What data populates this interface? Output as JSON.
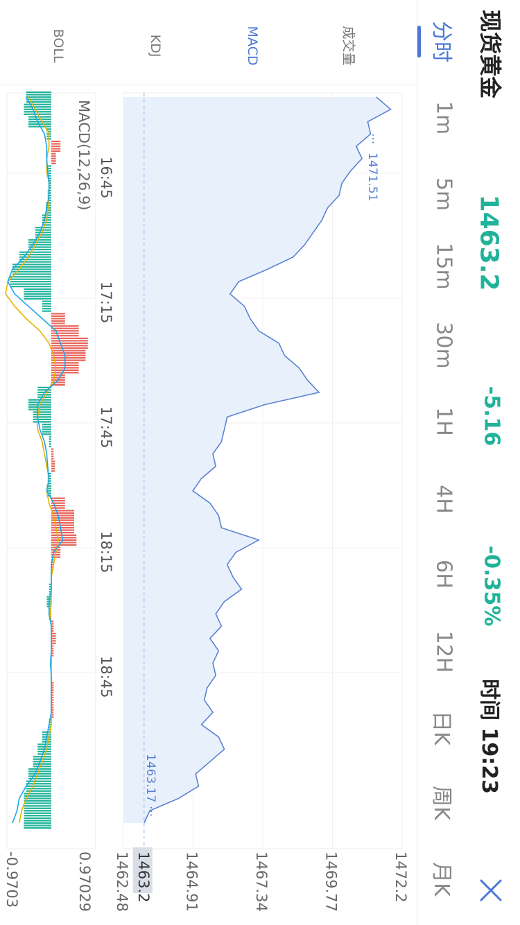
{
  "instrument": {
    "title": "现货黄金",
    "price": "1463.2",
    "change": "-5.16",
    "change_pct": "-0.35%",
    "time_label": "时间 19:23"
  },
  "periods": [
    "分时",
    "1m",
    "5m",
    "15m",
    "30m",
    "1H",
    "4H",
    "6H",
    "12H",
    "日K",
    "周K",
    "月K"
  ],
  "active_period": "分时",
  "indicator_tabs": [
    "成交量",
    "MACD",
    "KDJ",
    "BOLL"
  ],
  "active_indicator": "MACD",
  "price_axis": {
    "labels": [
      "1472.2",
      "1469.77",
      "1467.34",
      "1464.91",
      "1462.48"
    ],
    "current_label": "1463.2"
  },
  "time_axis": {
    "labels": [
      "16:45",
      "17:15",
      "17:45",
      "18:15",
      "18:45"
    ]
  },
  "macd_label": "MACD(12,26,9)",
  "macd_axis": {
    "max": "0.97029",
    "min": "-0.9703"
  },
  "annotations": {
    "high": "1471.51",
    "low": "1463.17"
  },
  "colors": {
    "accent": "#4a78d6",
    "down": "#21b39a",
    "up": "#e8645a",
    "price_line": "#5b82d4",
    "price_fill": "#e8f0fb",
    "dif": "#1aa7e8",
    "dea": "#e6b400"
  },
  "chart_data": {
    "type": "line",
    "price_series": {
      "x": [
        "16:27",
        "16:30",
        "16:33",
        "16:36",
        "16:39",
        "16:42",
        "16:45",
        "16:48",
        "16:51",
        "16:54",
        "16:57",
        "17:00",
        "17:03",
        "17:06",
        "17:09",
        "17:12",
        "17:15",
        "17:18",
        "17:21",
        "17:24",
        "17:27",
        "17:30",
        "17:33",
        "17:36",
        "17:39",
        "17:42",
        "17:45",
        "17:48",
        "17:51",
        "17:54",
        "17:57",
        "18:00",
        "18:03",
        "18:06",
        "18:09",
        "18:12",
        "18:15",
        "18:18",
        "18:21",
        "18:24",
        "18:27",
        "18:30",
        "18:33",
        "18:36",
        "18:39",
        "18:42",
        "18:45",
        "18:48",
        "18:51",
        "18:54",
        "18:57",
        "19:00",
        "19:03",
        "19:06",
        "19:09",
        "19:12",
        "19:15",
        "19:18",
        "19:21",
        "19:23"
      ],
      "y": [
        1471.3,
        1471.8,
        1471.0,
        1471.1,
        1470.6,
        1470.8,
        1470.4,
        1470.1,
        1470.0,
        1469.6,
        1469.4,
        1469.1,
        1468.8,
        1468.4,
        1467.5,
        1466.5,
        1466.2,
        1466.7,
        1466.9,
        1467.2,
        1467.9,
        1468.1,
        1468.6,
        1468.9,
        1469.3,
        1467.4,
        1466.1,
        1466.0,
        1465.9,
        1465.6,
        1465.7,
        1465.2,
        1464.9,
        1465.5,
        1465.8,
        1465.9,
        1467.2,
        1466.4,
        1466.1,
        1466.3,
        1466.6,
        1466.0,
        1465.7,
        1465.9,
        1465.5,
        1465.8,
        1465.6,
        1465.7,
        1465.4,
        1465.3,
        1465.6,
        1465.2,
        1465.8,
        1466.0,
        1465.5,
        1465.0,
        1465.1,
        1464.4,
        1463.4,
        1463.2
      ]
    },
    "macd_series": {
      "histogram": [
        -0.55,
        -0.6,
        -0.5,
        -0.1,
        0.2,
        0.1,
        -0.1,
        -0.05,
        -0.08,
        -0.12,
        -0.2,
        -0.35,
        -0.5,
        -0.7,
        -0.85,
        -0.9,
        -0.6,
        -0.2,
        0.3,
        0.6,
        0.8,
        0.75,
        0.6,
        0.3,
        -0.3,
        -0.5,
        -0.4,
        -0.2,
        -0.05,
        0.05,
        0.08,
        -0.08,
        -0.1,
        0.3,
        0.5,
        0.5,
        0.55,
        0.2,
        0.05,
        0.0,
        -0.05,
        -0.1,
        -0.05,
        0.05,
        0.1,
        0.05,
        0.0,
        0.0,
        0.05,
        0.05,
        0.05,
        -0.05,
        -0.2,
        -0.3,
        -0.4,
        -0.5,
        -0.55,
        -0.6,
        -0.6,
        -0.6
      ],
      "dif": [
        -0.55,
        -0.4,
        -0.3,
        -0.15,
        -0.1,
        -0.1,
        -0.08,
        -0.05,
        -0.05,
        -0.1,
        -0.15,
        -0.25,
        -0.4,
        -0.6,
        -0.85,
        -0.95,
        -0.8,
        -0.5,
        -0.2,
        0.1,
        0.2,
        0.3,
        0.3,
        0.15,
        -0.15,
        -0.3,
        -0.3,
        -0.25,
        -0.15,
        -0.1,
        -0.08,
        -0.05,
        -0.1,
        0.05,
        0.15,
        0.2,
        0.25,
        0.05,
        0.0,
        0.0,
        0.0,
        -0.05,
        -0.05,
        0.0,
        0.0,
        0.0,
        -0.02,
        0.0,
        0.0,
        0.0,
        0.0,
        -0.05,
        -0.1,
        -0.15,
        -0.25,
        -0.35,
        -0.55,
        -0.7,
        -0.75,
        -0.85
      ],
      "dea": [
        -0.5,
        -0.35,
        -0.2,
        -0.05,
        -0.05,
        -0.1,
        -0.1,
        -0.05,
        -0.05,
        -0.07,
        -0.1,
        -0.2,
        -0.35,
        -0.5,
        -0.7,
        -0.95,
        -1.0,
        -0.8,
        -0.55,
        -0.25,
        -0.05,
        0.05,
        0.1,
        0.05,
        -0.1,
        -0.25,
        -0.3,
        -0.3,
        -0.2,
        -0.15,
        -0.1,
        -0.05,
        -0.1,
        -0.05,
        0.05,
        0.1,
        0.15,
        0.1,
        0.05,
        0.0,
        0.0,
        0.0,
        -0.02,
        0.0,
        0.0,
        0.0,
        0.0,
        0.0,
        0.0,
        0.0,
        0.0,
        0.0,
        -0.05,
        -0.1,
        -0.2,
        -0.3,
        -0.4,
        -0.55,
        -0.65,
        -0.7
      ]
    },
    "price_ylim": [
      1462.48,
      1472.2
    ],
    "macd_ylim": [
      -0.9703,
      0.97029
    ],
    "grid": true
  }
}
